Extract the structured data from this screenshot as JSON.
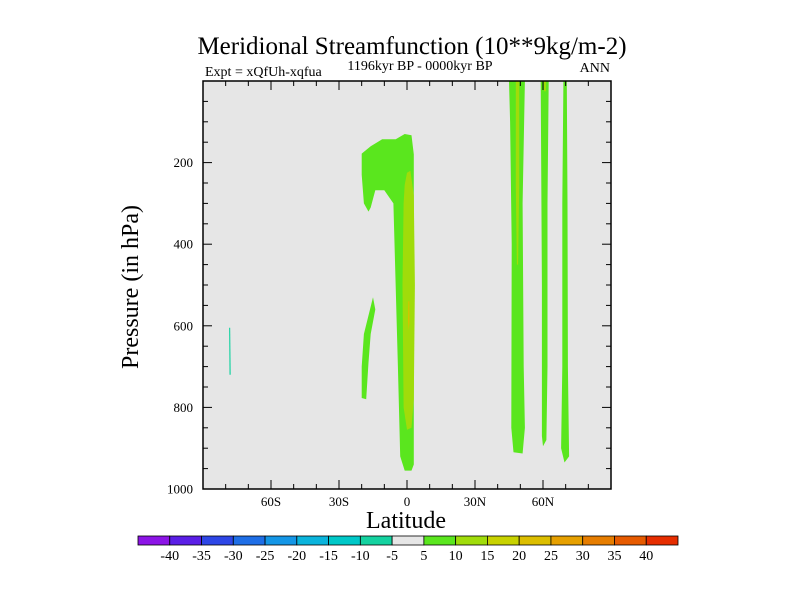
{
  "chart_data": {
    "type": "heatmap",
    "title": "Meridional Streamfunction (10**9kg/m-2)",
    "left_label": "Expt = xQfUh-xqfua",
    "center_label": "1196kyr BP - 0000kyr BP",
    "right_label": "ANN",
    "xlabel": "Latitude",
    "ylabel": "Pressure (in hPa)",
    "xlim": [
      -90,
      90
    ],
    "ylim": [
      1000,
      0
    ],
    "x_ticks": [
      {
        "value": -60,
        "label": "60S"
      },
      {
        "value": -30,
        "label": "30S"
      },
      {
        "value": 0,
        "label": "0"
      },
      {
        "value": 30,
        "label": "30N"
      },
      {
        "value": 60,
        "label": "60N"
      }
    ],
    "x_minor_step": 10,
    "y_ticks": [
      {
        "value": 200,
        "label": "200"
      },
      {
        "value": 400,
        "label": "400"
      },
      {
        "value": 600,
        "label": "600"
      },
      {
        "value": 800,
        "label": "800"
      },
      {
        "value": 1000,
        "label": "1000"
      }
    ],
    "y_minor_step": 50,
    "background_color": "#e6e6e6",
    "colorbar": {
      "boxes": [
        {
          "color": "#8c14e6"
        },
        {
          "color": "#5a1ee6"
        },
        {
          "color": "#2d46e6"
        },
        {
          "color": "#1e6ee6"
        },
        {
          "color": "#1496e6"
        },
        {
          "color": "#0ab4dc"
        },
        {
          "color": "#00c8c8"
        },
        {
          "color": "#14d2a0"
        },
        {
          "color": "#e6e6e6"
        },
        {
          "color": "#5ae61e"
        },
        {
          "color": "#a0dc0a"
        },
        {
          "color": "#c8d200"
        },
        {
          "color": "#dcbe00"
        },
        {
          "color": "#e6a000"
        },
        {
          "color": "#e67d00"
        },
        {
          "color": "#e65a00"
        },
        {
          "color": "#e62d00"
        }
      ],
      "labels": [
        "-40",
        "-35",
        "-30",
        "-25",
        "-20",
        "-15",
        "-10",
        "-5",
        "5",
        "10",
        "15",
        "20",
        "25",
        "30",
        "35",
        "40"
      ]
    },
    "features": [
      {
        "name": "sh-cyan-sliver",
        "color": "#14d2a0",
        "value": -7.5,
        "points": [
          [
            -78.5,
            605
          ],
          [
            -78,
            605
          ],
          [
            -77.8,
            720
          ],
          [
            -78.3,
            720
          ]
        ]
      },
      {
        "name": "left-hook",
        "color": "#5ae61e",
        "value": 7.5,
        "points": [
          [
            -20,
            178
          ],
          [
            -16,
            160
          ],
          [
            -11,
            143
          ],
          [
            -5,
            143
          ],
          [
            -1,
            130
          ],
          [
            2,
            133
          ],
          [
            3,
            180
          ],
          [
            3,
            500
          ],
          [
            3,
            940
          ],
          [
            2,
            955
          ],
          [
            -1,
            955
          ],
          [
            -3,
            920
          ],
          [
            -4,
            700
          ],
          [
            -6,
            300
          ],
          [
            -10,
            268
          ],
          [
            -14,
            268
          ],
          [
            -16,
            310
          ],
          [
            -17,
            320
          ],
          [
            -19,
            300
          ],
          [
            -20,
            230
          ]
        ]
      },
      {
        "name": "left-arm",
        "color": "#5ae61e",
        "value": 7.5,
        "points": [
          [
            -15,
            530
          ],
          [
            -14,
            560
          ],
          [
            -16,
            620
          ],
          [
            -17,
            690
          ],
          [
            -18,
            780
          ],
          [
            -20,
            777
          ],
          [
            -20,
            700
          ],
          [
            -19,
            620
          ]
        ]
      },
      {
        "name": "eq-core",
        "color": "#a0dc0a",
        "value": 12.5,
        "points": [
          [
            -1,
            255
          ],
          [
            0,
            225
          ],
          [
            1.5,
            220
          ],
          [
            3,
            280
          ],
          [
            3.5,
            500
          ],
          [
            3,
            780
          ],
          [
            2,
            850
          ],
          [
            0,
            855
          ],
          [
            -1.5,
            800
          ],
          [
            -2,
            500
          ],
          [
            -1.5,
            300
          ]
        ]
      },
      {
        "name": "eq-max",
        "color": "#dcbe00",
        "value": 17.5,
        "points": [
          [
            0.6,
            540
          ],
          [
            1.0,
            540
          ],
          [
            1.1,
            590
          ],
          [
            0.8,
            610
          ],
          [
            0.5,
            590
          ]
        ]
      },
      {
        "name": "column-45n",
        "color": "#5ae61e",
        "value": 7.5,
        "points": [
          [
            45,
            0
          ],
          [
            52,
            0
          ],
          [
            51,
            300
          ],
          [
            51.5,
            700
          ],
          [
            52,
            850
          ],
          [
            51,
            913
          ],
          [
            47,
            910
          ],
          [
            46,
            850
          ],
          [
            46.2,
            400
          ],
          [
            45.5,
            100
          ]
        ]
      },
      {
        "name": "column-45n-core",
        "color": "#a0dc0a",
        "value": 12.5,
        "points": [
          [
            48,
            0
          ],
          [
            49.5,
            0
          ],
          [
            49.5,
            260
          ],
          [
            49,
            450
          ],
          [
            48.5,
            450
          ],
          [
            48,
            260
          ]
        ]
      },
      {
        "name": "column-60n",
        "color": "#5ae61e",
        "value": 7.5,
        "points": [
          [
            59,
            0
          ],
          [
            62.5,
            0
          ],
          [
            62,
            300
          ],
          [
            62,
            700
          ],
          [
            61.5,
            880
          ],
          [
            60,
            895
          ],
          [
            59.5,
            870
          ],
          [
            59.5,
            500
          ]
        ]
      },
      {
        "name": "column-60n-core",
        "color": "#a0dc0a",
        "value": 12.5,
        "points": [
          [
            60.4,
            0
          ],
          [
            61.4,
            0
          ],
          [
            61.3,
            25
          ],
          [
            60.5,
            25
          ]
        ]
      },
      {
        "name": "column-70n",
        "color": "#5ae61e",
        "value": 7.5,
        "points": [
          [
            69,
            0
          ],
          [
            70.5,
            0
          ],
          [
            70.8,
            300
          ],
          [
            71,
            700
          ],
          [
            71.5,
            920
          ],
          [
            69.5,
            935
          ],
          [
            68,
            900
          ],
          [
            68.5,
            700
          ],
          [
            68.5,
            300
          ]
        ]
      }
    ]
  }
}
